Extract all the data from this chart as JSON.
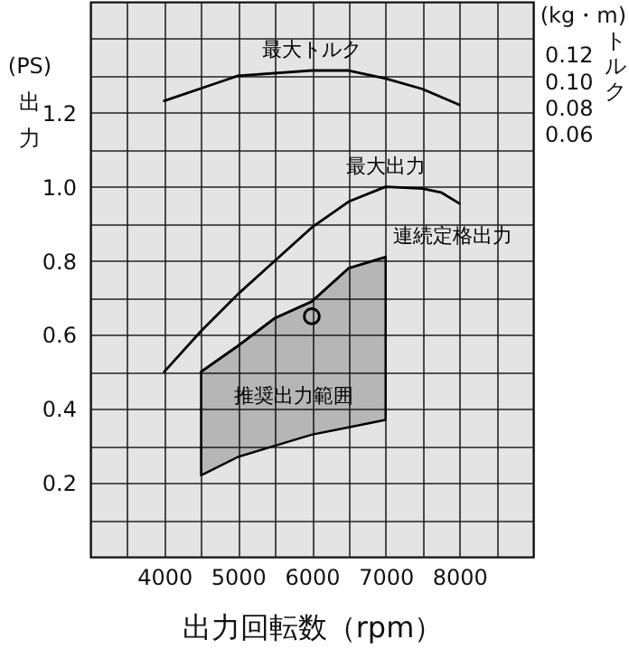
{
  "chart_data": {
    "type": "line",
    "xlabel": "出力回転数（rpm）",
    "ylabel": "(PS) 出力",
    "y2label": "(kg・m) トルク",
    "xlim": [
      3000,
      9000
    ],
    "xticks": [
      {
        "value": 3500,
        "label": null
      },
      4000,
      {
        "value": 4500,
        "label": null
      },
      5000,
      {
        "value": 5500,
        "label": null
      },
      6000,
      {
        "value": 6500,
        "label": null
      },
      7000,
      {
        "value": 7500,
        "label": null
      },
      8000,
      {
        "value": 8500,
        "label": null
      }
    ],
    "ylim": [
      0,
      1.5
    ],
    "yticks": [
      {
        "value": 0.1,
        "label": null
      },
      0.2,
      {
        "value": 0.3,
        "label": null
      },
      0.4,
      {
        "value": 0.5,
        "label": null
      },
      0.6,
      {
        "value": 0.7,
        "label": null
      },
      0.8,
      {
        "value": 0.9,
        "label": null
      },
      {
        "value": 1.0,
        "label": "1.0"
      },
      {
        "value": 1.1,
        "label": null
      },
      1.2,
      {
        "value": 1.3,
        "label": null
      },
      {
        "value": 1.4,
        "label": null
      }
    ],
    "y2lim": [
      -0.26,
      0.16
    ],
    "y2ticks": [
      0.12,
      {
        "value": 0.1,
        "label": "0.10"
      },
      0.08,
      0.06
    ],
    "grid": true,
    "annotations": [
      "推奨出力範囲"
    ],
    "series": [
      {
        "name": "最大トルク",
        "type": "line",
        "axis": "y2",
        "color": "#000000",
        "x": [
          4000,
          5000,
          6000,
          6500,
          7000,
          7500,
          8000
        ],
        "values": [
          0.085,
          0.104,
          0.108,
          0.108,
          0.102,
          0.094,
          0.082
        ]
      },
      {
        "name": "最大出力",
        "color": "#000000",
        "x": [
          4000,
          4500,
          5000,
          5500,
          6000,
          6500,
          7000,
          7500,
          7750,
          8000
        ],
        "values": [
          0.5,
          0.61,
          0.71,
          0.8,
          0.89,
          0.96,
          1.0,
          0.995,
          0.985,
          0.955
        ]
      },
      {
        "name": "連続定格出力",
        "type": "line",
        "color": "#000000",
        "x": [
          4500,
          5000,
          5500,
          6000,
          6500,
          7000
        ],
        "values": [
          0.5,
          0.57,
          0.645,
          0.69,
          0.78,
          0.81
        ],
        "lower": [
          0.22,
          0.27,
          0.3,
          0.33,
          0.35,
          0.37
        ],
        "upper": [
          0.5,
          0.57,
          0.645,
          0.69,
          0.78,
          0.81
        ]
      },
      {
        "type": "scatter",
        "marker": "circle",
        "color": "#000000",
        "x": [
          6000
        ],
        "values": [
          0.65
        ]
      }
    ]
  }
}
